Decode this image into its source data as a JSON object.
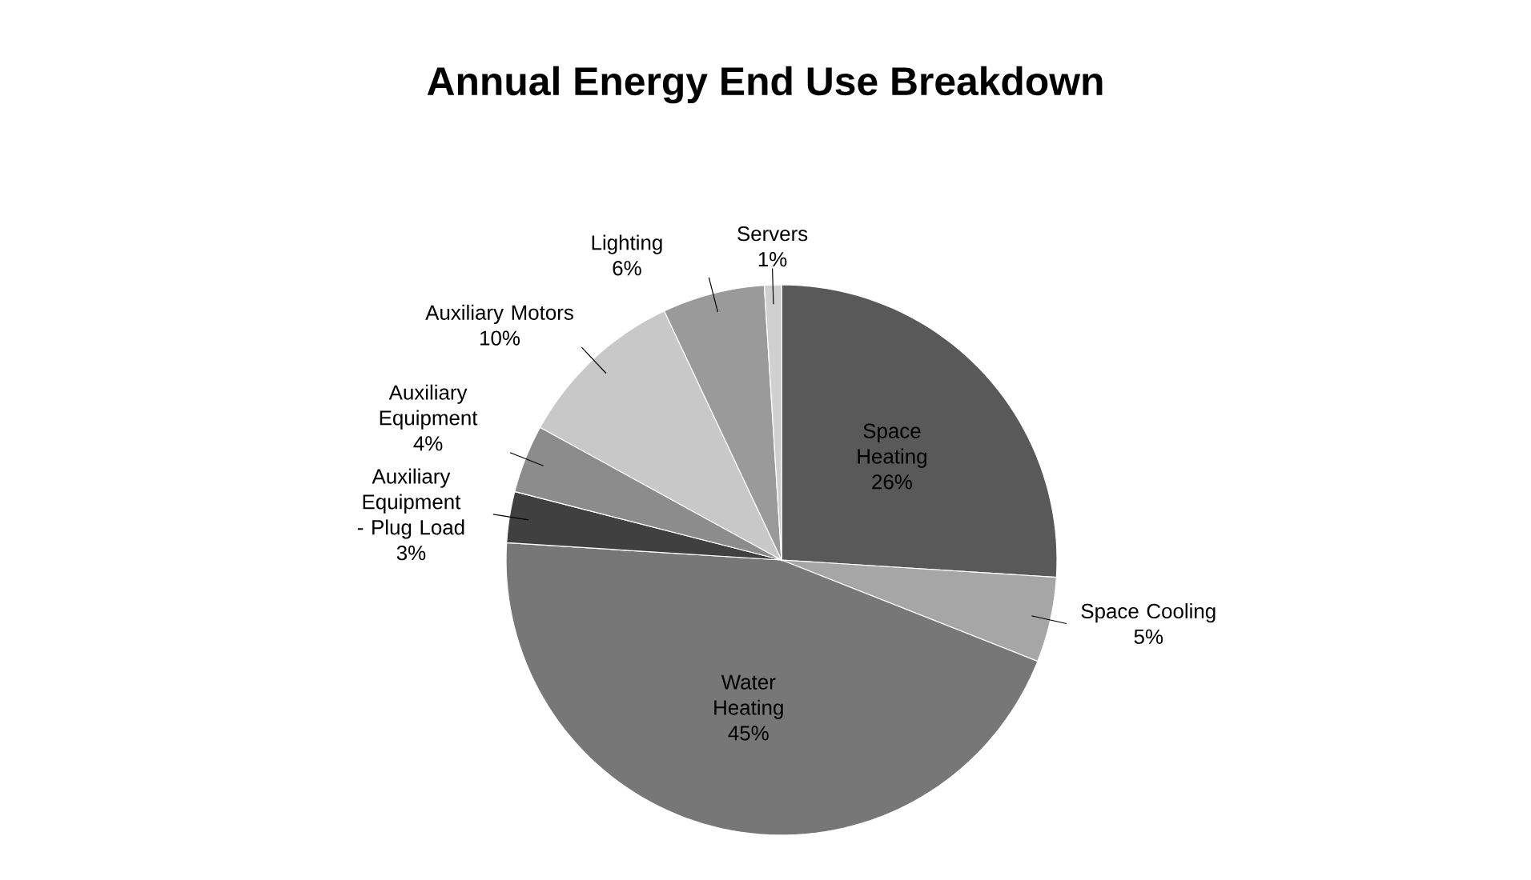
{
  "chart_data": {
    "type": "pie",
    "title": "Annual Energy End Use Breakdown",
    "categories": [
      "Space Heating",
      "Space Cooling",
      "Water Heating",
      "Auxiliary Equipment - Plug Load",
      "Auxiliary Equipment",
      "Auxiliary Motors",
      "Lighting",
      "Servers"
    ],
    "values": [
      26,
      5,
      45,
      3,
      4,
      10,
      6,
      1
    ],
    "value_labels": [
      "26%",
      "5%",
      "45%",
      "3%",
      "4%",
      "10%",
      "6%",
      "1%"
    ],
    "colors": [
      "#595959",
      "#a6a6a6",
      "#777777",
      "#404040",
      "#8c8c8c",
      "#c8c8c8",
      "#9a9a9a",
      "#d0d0d0"
    ]
  }
}
